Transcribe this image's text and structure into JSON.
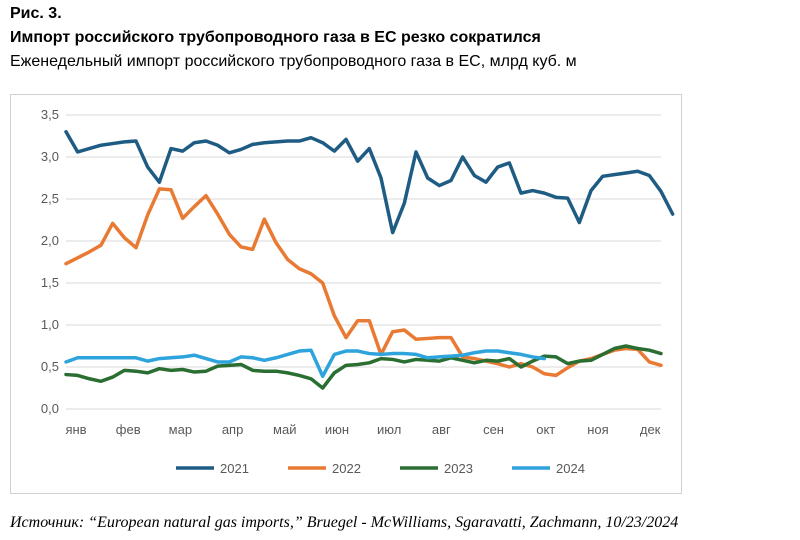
{
  "header": {
    "fig_num": "Рис. 3.",
    "title": "Импорт российского трубопроводного газа в ЕС резко сократился",
    "subtitle": "Еженедельный импорт российского трубопроводного газа в ЕС, млрд куб. м"
  },
  "source": "Источник: “European natural gas imports,” Bruegel - McWilliams, Sgaravatti, Zachmann, 10/23/2024",
  "chart_data": {
    "type": "line",
    "title": "",
    "xlabel": "",
    "ylabel": "",
    "ylim": [
      0,
      3.5
    ],
    "xlim": [
      1,
      52
    ],
    "yticks": [
      "0,0",
      "0,5",
      "1,0",
      "1,5",
      "2,0",
      "2,5",
      "3,0",
      "3,5"
    ],
    "month_labels": [
      "янв",
      "фев",
      "мар",
      "апр",
      "май",
      "июн",
      "июл",
      "авг",
      "сен",
      "окт",
      "ноя",
      "дек"
    ],
    "grid": true,
    "legend_position": "bottom",
    "series": [
      {
        "name": "2021",
        "color": "#1f5c84",
        "values": [
          3.3,
          3.06,
          3.1,
          3.14,
          3.16,
          3.18,
          3.19,
          2.88,
          2.7,
          3.1,
          3.07,
          3.17,
          3.19,
          3.14,
          3.05,
          3.09,
          3.15,
          3.17,
          3.18,
          3.19,
          3.19,
          3.23,
          3.17,
          3.07,
          3.21,
          2.95,
          3.1,
          2.75,
          2.1,
          2.45,
          3.06,
          2.75,
          2.66,
          2.72,
          3.0,
          2.78,
          2.7,
          2.88,
          2.93,
          2.57,
          2.6,
          2.57,
          2.52,
          2.51,
          2.22,
          2.6,
          2.77,
          2.79,
          2.81,
          2.83,
          2.78,
          2.59,
          2.32
        ]
      },
      {
        "name": "2022",
        "color": "#e97a33",
        "values": [
          1.73,
          1.8,
          1.87,
          1.95,
          2.21,
          2.04,
          1.92,
          2.31,
          2.62,
          2.61,
          2.27,
          2.41,
          2.54,
          2.32,
          2.08,
          1.93,
          1.9,
          2.26,
          1.98,
          1.78,
          1.67,
          1.61,
          1.5,
          1.11,
          0.85,
          1.05,
          1.05,
          0.65,
          0.92,
          0.94,
          0.83,
          0.84,
          0.85,
          0.85,
          0.62,
          0.6,
          0.57,
          0.54,
          0.5,
          0.54,
          0.5,
          0.42,
          0.4,
          0.49,
          0.57,
          0.6,
          0.65,
          0.7,
          0.72,
          0.71,
          0.56,
          0.52
        ]
      },
      {
        "name": "2023",
        "color": "#2b6e32",
        "values": [
          0.41,
          0.4,
          0.36,
          0.33,
          0.38,
          0.46,
          0.45,
          0.43,
          0.48,
          0.46,
          0.47,
          0.44,
          0.45,
          0.51,
          0.52,
          0.53,
          0.46,
          0.45,
          0.45,
          0.43,
          0.4,
          0.36,
          0.25,
          0.43,
          0.52,
          0.53,
          0.55,
          0.6,
          0.59,
          0.56,
          0.59,
          0.58,
          0.57,
          0.61,
          0.58,
          0.55,
          0.58,
          0.57,
          0.6,
          0.5,
          0.57,
          0.63,
          0.62,
          0.54,
          0.57,
          0.58,
          0.65,
          0.72,
          0.75,
          0.72,
          0.7,
          0.66
        ]
      },
      {
        "name": "2024",
        "color": "#2ea3dc",
        "values": [
          0.56,
          0.61,
          0.61,
          0.61,
          0.61,
          0.61,
          0.61,
          0.57,
          0.6,
          0.61,
          0.62,
          0.64,
          0.6,
          0.56,
          0.56,
          0.62,
          0.61,
          0.58,
          0.61,
          0.65,
          0.69,
          0.7,
          0.39,
          0.65,
          0.69,
          0.69,
          0.66,
          0.65,
          0.66,
          0.66,
          0.65,
          0.61,
          0.62,
          0.63,
          0.64,
          0.67,
          0.69,
          0.69,
          0.67,
          0.65,
          0.62,
          0.6
        ]
      }
    ]
  }
}
